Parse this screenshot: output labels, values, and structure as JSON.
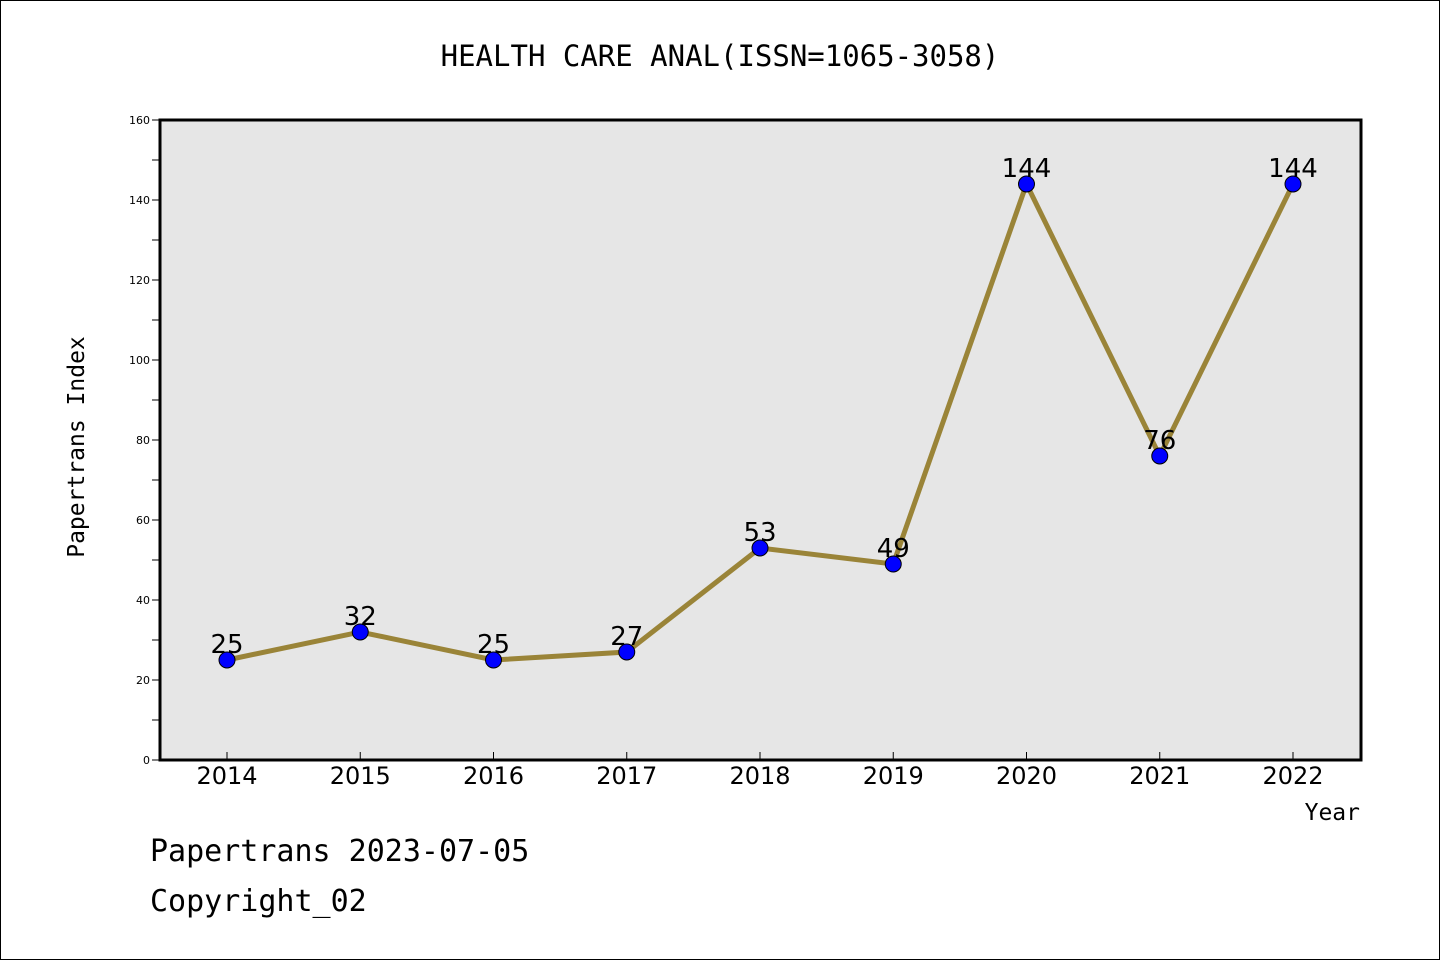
{
  "chart_data": {
    "type": "line",
    "title": "HEALTH CARE ANAL(ISSN=1065-3058)",
    "xlabel": "Year",
    "ylabel": "Papertrans Index",
    "x": [
      "2014",
      "2015",
      "2016",
      "2017",
      "2018",
      "2019",
      "2020",
      "2021",
      "2022"
    ],
    "series": [
      {
        "values": [
          25,
          32,
          25,
          27,
          53,
          49,
          144,
          76,
          144
        ]
      }
    ],
    "ylim": [
      0,
      160
    ],
    "yticks": [
      0,
      20,
      40,
      60,
      80,
      100,
      120,
      140,
      160
    ],
    "grid": false,
    "colors": {
      "line": "#9a8438",
      "marker": "#0000ff",
      "plot_background": "#e6e6e6"
    }
  },
  "footer": {
    "line1": "Papertrans 2023-07-05",
    "line2": "Copyright_02"
  }
}
